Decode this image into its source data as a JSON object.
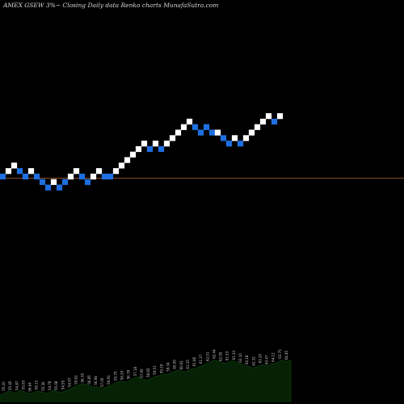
{
  "header": {
    "title": "AMEX  GSEW 3%~ Closing Daily data Renko  charts MunafaSutra.com"
  },
  "colors": {
    "background": "#000000",
    "up_brick": "#ffffff",
    "down_brick": "#1e6fe0",
    "reference_line": "#8b4a1e",
    "volume_area": "#062106",
    "volume_outline": "#0d3b0d"
  },
  "chart_data": {
    "type": "renko",
    "brick_size_pct": 3,
    "bricks": [
      {
        "level": 0,
        "dir": "down"
      },
      {
        "level": 1,
        "dir": "up"
      },
      {
        "level": 2,
        "dir": "up"
      },
      {
        "level": 1,
        "dir": "down"
      },
      {
        "level": 0,
        "dir": "down"
      },
      {
        "level": 1,
        "dir": "up"
      },
      {
        "level": 0,
        "dir": "down"
      },
      {
        "level": -1,
        "dir": "down"
      },
      {
        "level": -2,
        "dir": "down"
      },
      {
        "level": -1,
        "dir": "up"
      },
      {
        "level": -2,
        "dir": "down"
      },
      {
        "level": -1,
        "dir": "down"
      },
      {
        "level": 0,
        "dir": "up"
      },
      {
        "level": 1,
        "dir": "up"
      },
      {
        "level": 0,
        "dir": "down"
      },
      {
        "level": -1,
        "dir": "down"
      },
      {
        "level": 0,
        "dir": "up"
      },
      {
        "level": 1,
        "dir": "up"
      },
      {
        "level": 0,
        "dir": "down"
      },
      {
        "level": 0,
        "dir": "down"
      },
      {
        "level": 1,
        "dir": "up"
      },
      {
        "level": 2,
        "dir": "up"
      },
      {
        "level": 3,
        "dir": "up"
      },
      {
        "level": 4,
        "dir": "up"
      },
      {
        "level": 5,
        "dir": "up"
      },
      {
        "level": 6,
        "dir": "up"
      },
      {
        "level": 5,
        "dir": "down"
      },
      {
        "level": 6,
        "dir": "up"
      },
      {
        "level": 5,
        "dir": "down"
      },
      {
        "level": 6,
        "dir": "up"
      },
      {
        "level": 7,
        "dir": "up"
      },
      {
        "level": 8,
        "dir": "up"
      },
      {
        "level": 9,
        "dir": "up"
      },
      {
        "level": 10,
        "dir": "up"
      },
      {
        "level": 9,
        "dir": "down"
      },
      {
        "level": 8,
        "dir": "down"
      },
      {
        "level": 9,
        "dir": "down"
      },
      {
        "level": 8,
        "dir": "down"
      },
      {
        "level": 8,
        "dir": "up"
      },
      {
        "level": 7,
        "dir": "down"
      },
      {
        "level": 6,
        "dir": "down"
      },
      {
        "level": 7,
        "dir": "up"
      },
      {
        "level": 6,
        "dir": "down"
      },
      {
        "level": 7,
        "dir": "up"
      },
      {
        "level": 8,
        "dir": "up"
      },
      {
        "level": 9,
        "dir": "up"
      },
      {
        "level": 10,
        "dir": "up"
      },
      {
        "level": 11,
        "dir": "up"
      },
      {
        "level": 10,
        "dir": "down"
      },
      {
        "level": 11,
        "dir": "up"
      }
    ],
    "reference_level": -0.3,
    "volume": [
      0.1,
      0.12,
      0.14,
      0.16,
      0.15,
      0.13,
      0.15,
      0.17,
      0.16,
      0.14,
      0.12,
      0.13,
      0.15,
      0.16,
      0.15,
      0.14,
      0.13,
      0.15,
      0.17,
      0.16,
      0.15,
      0.14,
      0.16,
      0.18,
      0.2,
      0.22,
      0.24,
      0.26,
      0.28,
      0.27,
      0.25,
      0.24,
      0.22,
      0.23,
      0.21,
      0.2,
      0.22,
      0.24,
      0.26,
      0.28,
      0.3,
      0.32,
      0.31,
      0.3,
      0.32,
      0.35,
      0.37,
      0.38,
      0.36,
      0.34,
      0.33,
      0.35,
      0.37,
      0.39,
      0.4,
      0.41,
      0.43,
      0.42,
      0.44,
      0.46,
      0.48,
      0.49,
      0.47,
      0.46,
      0.48,
      0.5,
      0.51,
      0.52,
      0.54,
      0.56,
      0.58,
      0.6,
      0.62,
      0.64,
      0.63,
      0.61,
      0.6,
      0.59,
      0.61,
      0.63,
      0.62,
      0.6,
      0.58,
      0.57,
      0.55,
      0.54,
      0.52,
      0.53,
      0.55,
      0.57,
      0.56,
      0.55,
      0.57,
      0.59,
      0.6,
      0.62,
      0.64,
      0.63,
      0.62,
      0.64
    ],
    "volume_labels": [
      "55.20",
      "55.45",
      "54.87",
      "55.93",
      "56.64",
      "56.12",
      "55.36",
      "54.78",
      "55.08",
      "54.55",
      "54.97",
      "55.62",
      "56.35",
      "56.85",
      "56.94",
      "57.05",
      "56.91",
      "55.75",
      "56.20",
      "56.78",
      "57.18",
      "57.95",
      "58.65",
      "59.51",
      "59.29",
      "59.34",
      "60.09",
      "60.61",
      "61.15",
      "61.66",
      "61.37",
      "62.01",
      "62.44",
      "62.55",
      "61.53",
      "61.33",
      "62.10",
      "62.18",
      "62.32",
      "63.20",
      "63.47",
      "64.12",
      "63.75",
      "64.45"
    ]
  }
}
